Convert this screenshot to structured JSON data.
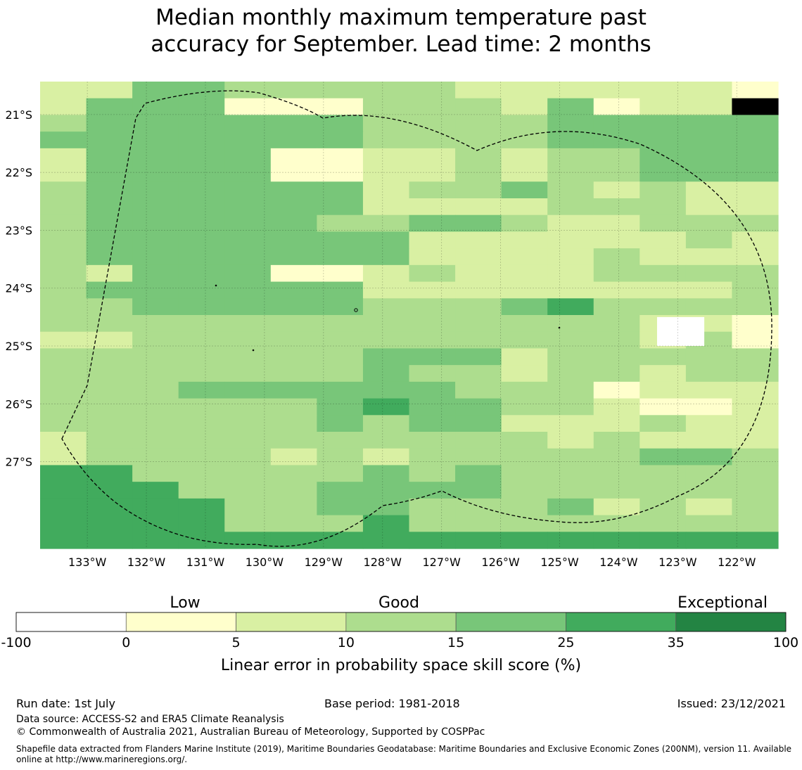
{
  "title_line1": "Median monthly maximum temperature past",
  "title_line2": "accuracy for September. Lead time: 2 months",
  "map": {
    "lon_range": [
      -133.8,
      -121.3
    ],
    "lat_range": [
      -28.5,
      -20.43
    ],
    "lat_ticks": [
      {
        "value": -21,
        "label": "21°S"
      },
      {
        "value": -22,
        "label": "22°S"
      },
      {
        "value": -23,
        "label": "23°S"
      },
      {
        "value": -24,
        "label": "24°S"
      },
      {
        "value": -25,
        "label": "25°S"
      },
      {
        "value": -26,
        "label": "26°S"
      },
      {
        "value": -27,
        "label": "27°S"
      }
    ],
    "lon_ticks": [
      {
        "value": -133,
        "label": "133°W"
      },
      {
        "value": -132,
        "label": "132°W"
      },
      {
        "value": -131,
        "label": "131°W"
      },
      {
        "value": -130,
        "label": "130°W"
      },
      {
        "value": -129,
        "label": "129°W"
      },
      {
        "value": -128,
        "label": "128°W"
      },
      {
        "value": -127,
        "label": "127°W"
      },
      {
        "value": -126,
        "label": "126°W"
      },
      {
        "value": -125,
        "label": "125°W"
      },
      {
        "value": -124,
        "label": "124°W"
      },
      {
        "value": -123,
        "label": "123°W"
      },
      {
        "value": -122,
        "label": "122°W"
      }
    ],
    "grid_lines": true,
    "legend": "bottom",
    "grid_classes": [
      "3311222223333334",
      "3111444222314335",
      "2111111222211111",
      "1111111222211111",
      "3111144332322111",
      "3111144332322111",
      "2111111322123233",
      "2111111333322233",
      "2111112211233222",
      "2111111133333323",
      "2111111133332333",
      "2311144323332222",
      "2111111333333332",
      "2211111222102222",
      "2222222222222334",
      "3322222222222324",
      "2222222111322222",
      "2222222122322322",
      "2221111112224333",
      "2222221011223443",
      "2222221211333233",
      "3222222222232333",
      "3222232322222112",
      "0022222121222222",
      "0002221111222222",
      "0000221122213232",
      "0000222022222222",
      "0000000000000000"
    ],
    "grid_note": "class index per cell: 0=25-35, 1=15-25, 2=10-15, 3=5-10, 4=0-5"
  },
  "colorbar": {
    "bins": [
      {
        "from": -100,
        "to": 0,
        "color": "#ffffff"
      },
      {
        "from": 0,
        "to": 5,
        "color": "#ffffcc"
      },
      {
        "from": 5,
        "to": 10,
        "color": "#d9f0a3"
      },
      {
        "from": 10,
        "to": 15,
        "color": "#addd8e"
      },
      {
        "from": 15,
        "to": 25,
        "color": "#78c679"
      },
      {
        "from": 25,
        "to": 35,
        "color": "#41ab5d"
      },
      {
        "from": 35,
        "to": 100,
        "color": "#238443"
      }
    ],
    "tick_labels": [
      "-100",
      "0",
      "5",
      "10",
      "15",
      "25",
      "35",
      "100"
    ],
    "class_labels": {
      "low": "Low",
      "good": "Good",
      "exceptional": "Exceptional"
    },
    "title": "Linear error in probability space skill score (%)"
  },
  "footer": {
    "run_date": "Run date: 1st July",
    "base_period": "Base period: 1981-2018",
    "issued": "Issued: 23/12/2021",
    "data_source": "Data source: ACCESS-S2 and ERA5 Climate Reanalysis",
    "copyright": "© Commonwealth of Australia 2021, Australian Bureau of Meteorology, Supported by COSPPac",
    "shapefile": "Shapefile data extracted from Flanders Marine Institute (2019), Maritime Boundaries Geodatabase: Maritime Boundaries and Exclusive Economic Zones (200NM), version 11. Available online at http://www.marineregions.org/."
  }
}
